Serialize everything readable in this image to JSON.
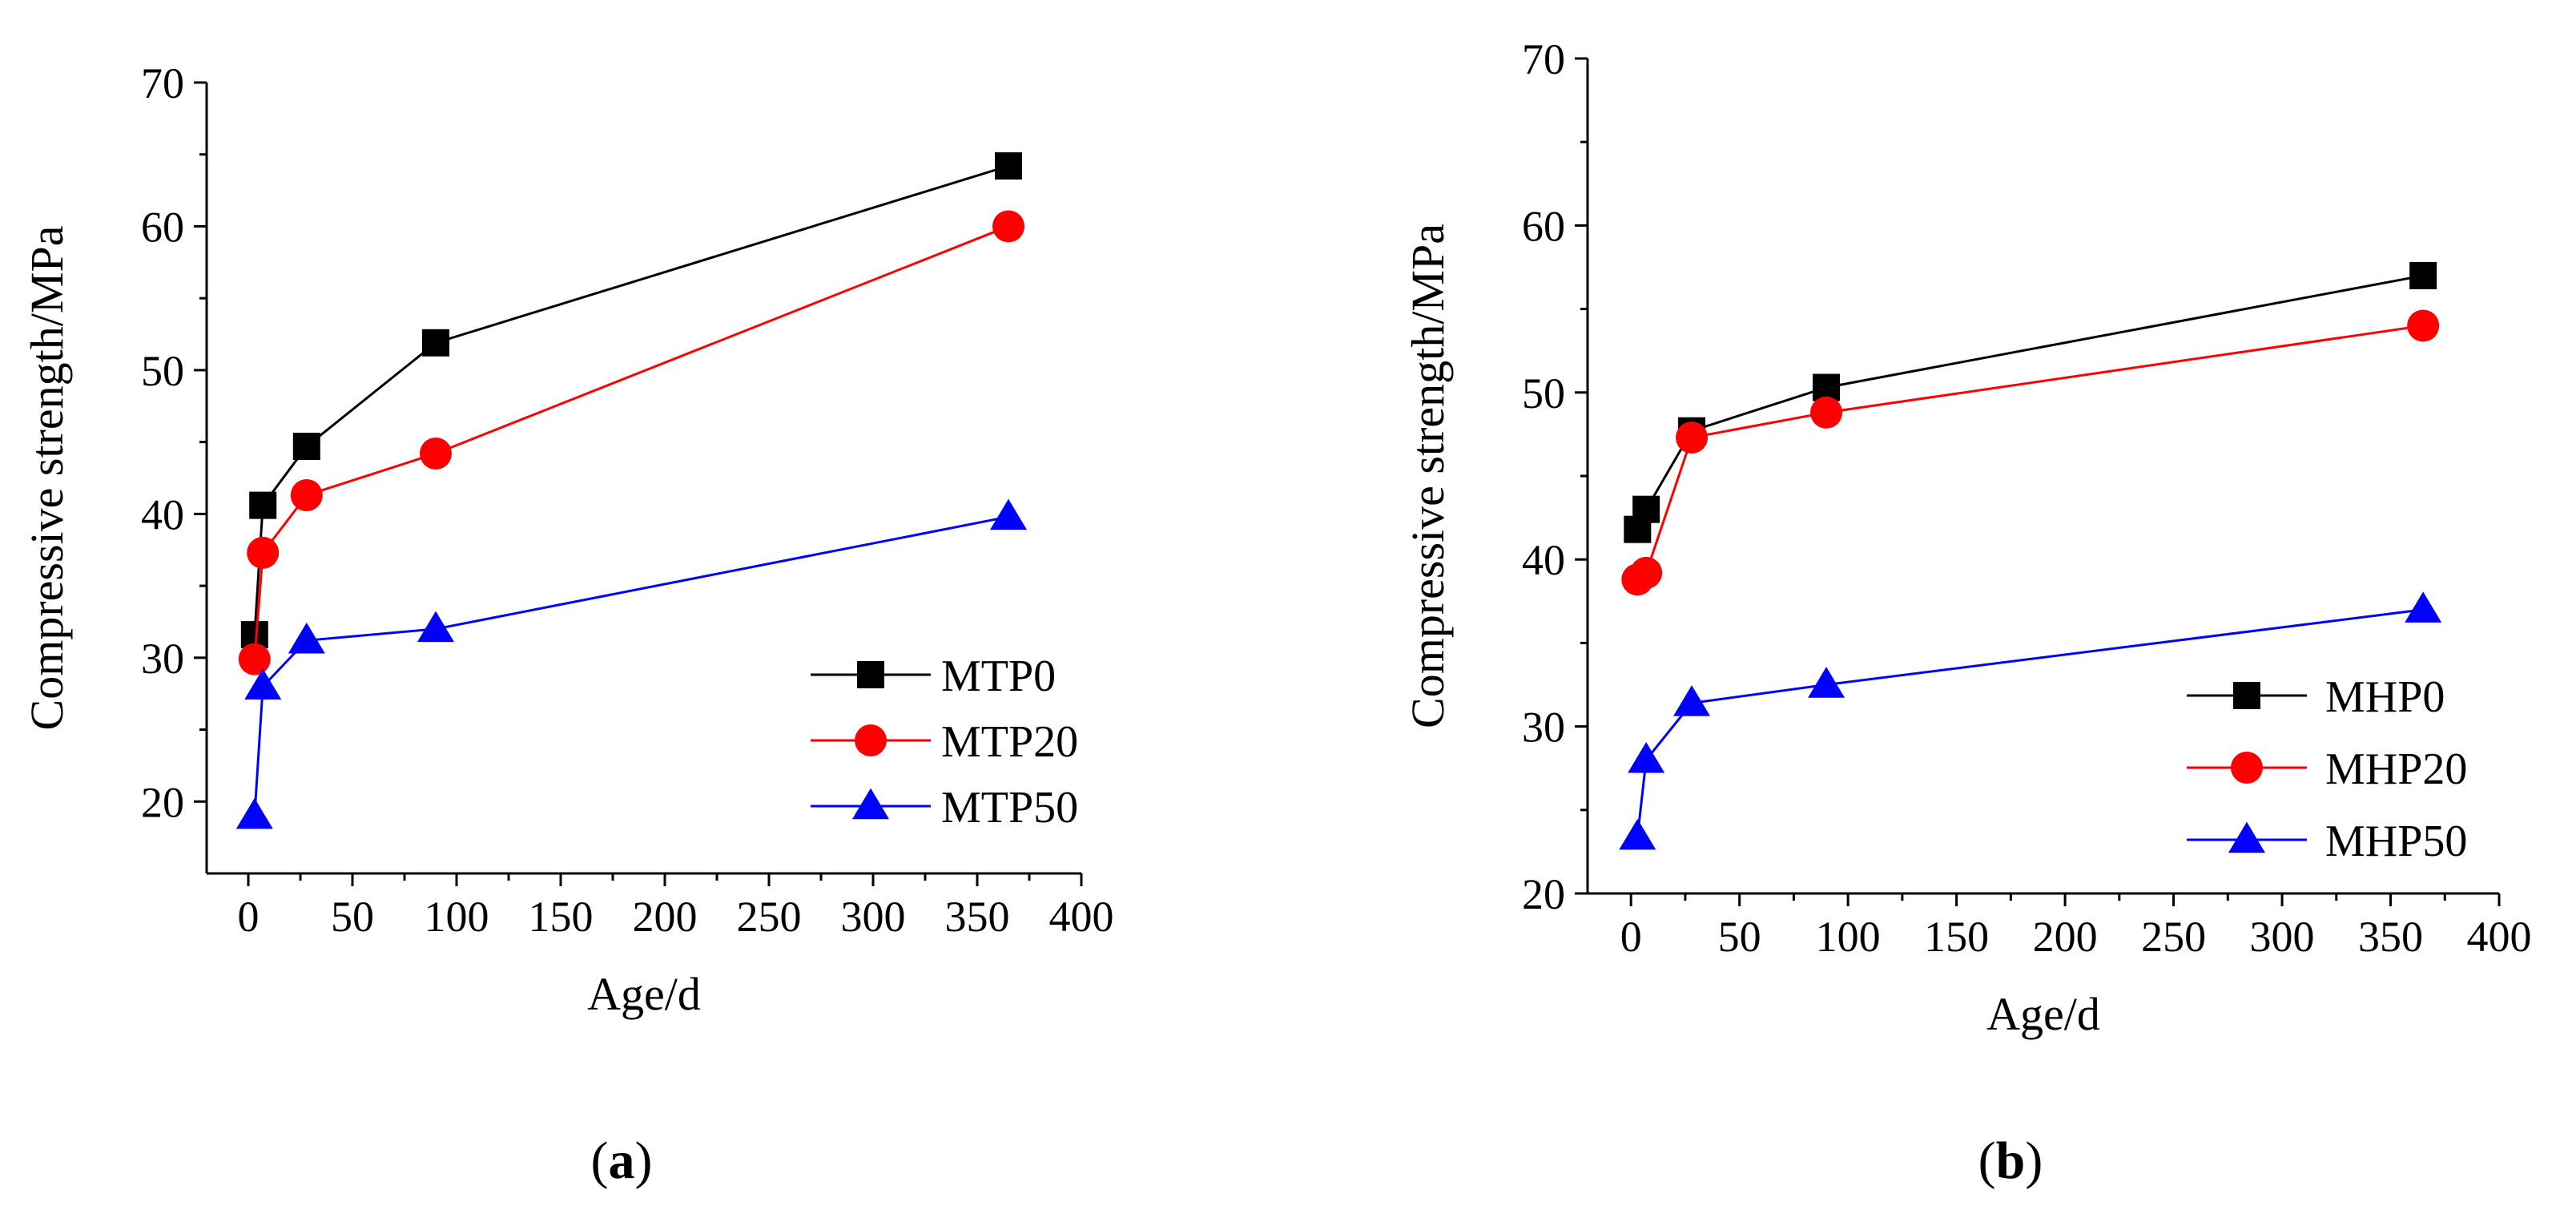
{
  "chart_data": [
    {
      "type": "line",
      "panel": "a",
      "panel_label": "a",
      "xlabel": "Age/d",
      "ylabel": "Compressive strength/MPa",
      "xlim": [
        -20,
        400
      ],
      "ylim": [
        15,
        70
      ],
      "xticks": [
        0,
        50,
        100,
        150,
        200,
        250,
        300,
        350,
        400
      ],
      "yticks": [
        20,
        30,
        40,
        50,
        60,
        70
      ],
      "legend_position": "bottom-right",
      "series": [
        {
          "name": "MTP0",
          "color": "#000000",
          "marker": "square",
          "x": [
            3,
            7,
            28,
            90,
            365
          ],
          "y": [
            31.6,
            40.6,
            44.7,
            51.9,
            64.2
          ]
        },
        {
          "name": "MTP20",
          "color": "#ff0000",
          "marker": "circle",
          "x": [
            3,
            7,
            28,
            90,
            365
          ],
          "y": [
            29.9,
            37.3,
            41.3,
            44.2,
            60.0
          ]
        },
        {
          "name": "MTP50",
          "color": "#0000ff",
          "marker": "triangle",
          "x": [
            3,
            7,
            28,
            90,
            365
          ],
          "y": [
            19.0,
            28.0,
            31.2,
            32.0,
            39.8
          ]
        }
      ]
    },
    {
      "type": "line",
      "panel": "b",
      "panel_label": "b",
      "xlabel": "Age/d",
      "ylabel": "Compressive strength/MPa",
      "xlim": [
        -20,
        400
      ],
      "ylim": [
        20,
        70
      ],
      "xticks": [
        0,
        50,
        100,
        150,
        200,
        250,
        300,
        350,
        400
      ],
      "yticks": [
        20,
        30,
        40,
        50,
        60,
        70
      ],
      "legend_position": "bottom-right",
      "series": [
        {
          "name": "MHP0",
          "color": "#000000",
          "marker": "square",
          "x": [
            3,
            7,
            28,
            90,
            365
          ],
          "y": [
            41.8,
            43.0,
            47.7,
            50.3,
            57.0
          ]
        },
        {
          "name": "MHP20",
          "color": "#ff0000",
          "marker": "circle",
          "x": [
            3,
            7,
            28,
            90,
            365
          ],
          "y": [
            38.8,
            39.2,
            47.3,
            48.8,
            54.0
          ]
        },
        {
          "name": "MHP50",
          "color": "#0000ff",
          "marker": "triangle",
          "x": [
            3,
            7,
            28,
            90,
            365
          ],
          "y": [
            23.4,
            28.0,
            31.4,
            32.5,
            37.0
          ]
        }
      ]
    }
  ]
}
